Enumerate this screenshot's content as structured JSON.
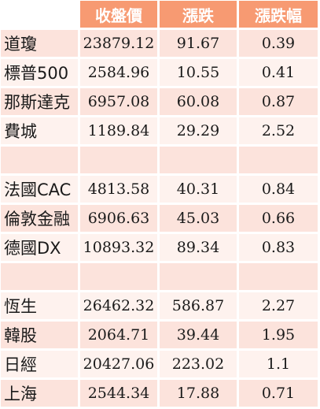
{
  "header": {
    "close": "收盤價",
    "change": "漲跌",
    "pct": "漲跌幅"
  },
  "rows": [
    {
      "name": "道瓊",
      "close": "23879.12",
      "change": "91.67",
      "pct": "0.39"
    },
    {
      "name": "標普500",
      "close": "2584.96",
      "change": "10.55",
      "pct": "0.41"
    },
    {
      "name": "那斯達克",
      "close": "6957.08",
      "change": "60.08",
      "pct": "0.87"
    },
    {
      "name": "費城",
      "close": "1189.84",
      "change": "29.29",
      "pct": "2.52"
    },
    {
      "name": "",
      "close": "",
      "change": "",
      "pct": ""
    },
    {
      "name": "法國CAC",
      "close": "4813.58",
      "change": "40.31",
      "pct": "0.84"
    },
    {
      "name": "倫敦金融",
      "close": "6906.63",
      "change": "45.03",
      "pct": "0.66"
    },
    {
      "name": "德國DX",
      "close": "10893.32",
      "change": "89.34",
      "pct": "0.83"
    },
    {
      "name": "",
      "close": "",
      "change": "",
      "pct": ""
    },
    {
      "name": "恆生",
      "close": "26462.32",
      "change": "586.87",
      "pct": "2.27"
    },
    {
      "name": "韓股",
      "close": "2064.71",
      "change": "39.44",
      "pct": "1.95"
    },
    {
      "name": "日經",
      "close": "20427.06",
      "change": "223.02",
      "pct": "1.1"
    },
    {
      "name": "上海",
      "close": "2544.34",
      "change": "17.88",
      "pct": "0.71"
    }
  ]
}
